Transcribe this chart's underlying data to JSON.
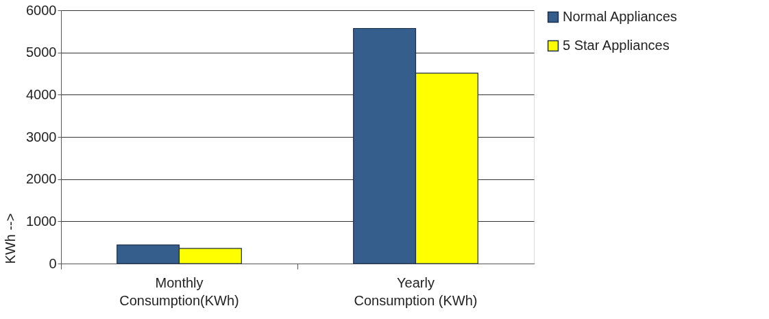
{
  "chart_data": {
    "type": "bar",
    "ylabel": "KWh -->",
    "categories": [
      "Monthly Consumption(KWh)",
      "Yearly Consumption (KWh)"
    ],
    "series": [
      {
        "name": "Normal Appliances",
        "color": "#355e8d",
        "values": [
          440,
          5570
        ]
      },
      {
        "name": "5 Star Appliances",
        "color": "#ffff00",
        "values": [
          360,
          4510
        ]
      }
    ],
    "ylim": [
      0,
      6000
    ],
    "yticks": [
      0,
      1000,
      2000,
      3000,
      4000,
      5000,
      6000
    ],
    "grid": "y",
    "legend": "right"
  }
}
